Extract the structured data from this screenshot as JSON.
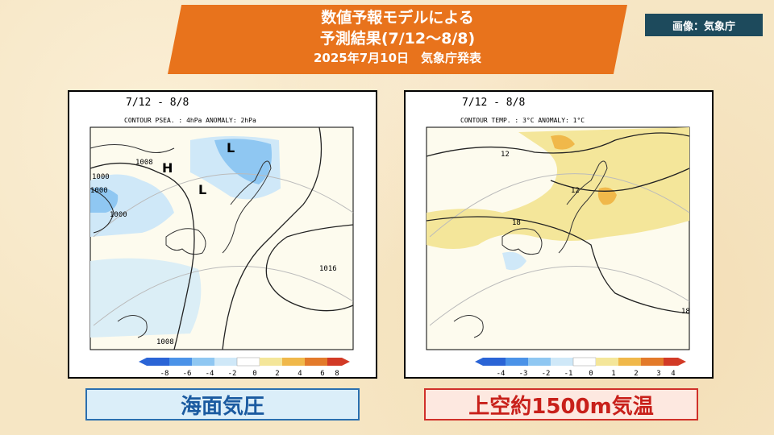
{
  "title": {
    "line1": "数値予報モデルによる",
    "line2": "予測結果(7/12～8/8)",
    "line3": "2025年7月10日　気象庁発表"
  },
  "credit": "画像：気象庁",
  "panels": [
    {
      "period": "7/12 - 8/8",
      "contour_info": "CONTOUR PSEA. : 4hPa    ANOMALY: 2hPa",
      "contour_labels": [
        "1008",
        "1000",
        "1000",
        "1000",
        "1016",
        "1008"
      ],
      "pressure_marks": [
        "H",
        "L",
        "L"
      ],
      "legend_ticks": [
        "-8",
        "-6",
        "-4",
        "-2",
        "0",
        "2",
        "4",
        "6",
        "8"
      ],
      "legend_colors": [
        "#2a64d6",
        "#4a92e8",
        "#8fc7f2",
        "#cfe8f8",
        "#ffffff",
        "#f4e69a",
        "#f0b84a",
        "#e37a2a",
        "#d23a26"
      ],
      "caption": "海面気圧"
    },
    {
      "period": "7/12 - 8/8",
      "contour_info": "CONTOUR TEMP. : 3°C    ANOMALY: 1°C",
      "contour_labels": [
        "12",
        "12",
        "18",
        "18"
      ],
      "legend_ticks": [
        "-4",
        "-3",
        "-2",
        "-1",
        "0",
        "1",
        "2",
        "3",
        "4"
      ],
      "legend_colors": [
        "#2a64d6",
        "#4a92e8",
        "#8fc7f2",
        "#cfe8f8",
        "#ffffff",
        "#f4e69a",
        "#f0b84a",
        "#e37a2a",
        "#d23a26"
      ],
      "caption": "上空約1500m気温"
    }
  ]
}
